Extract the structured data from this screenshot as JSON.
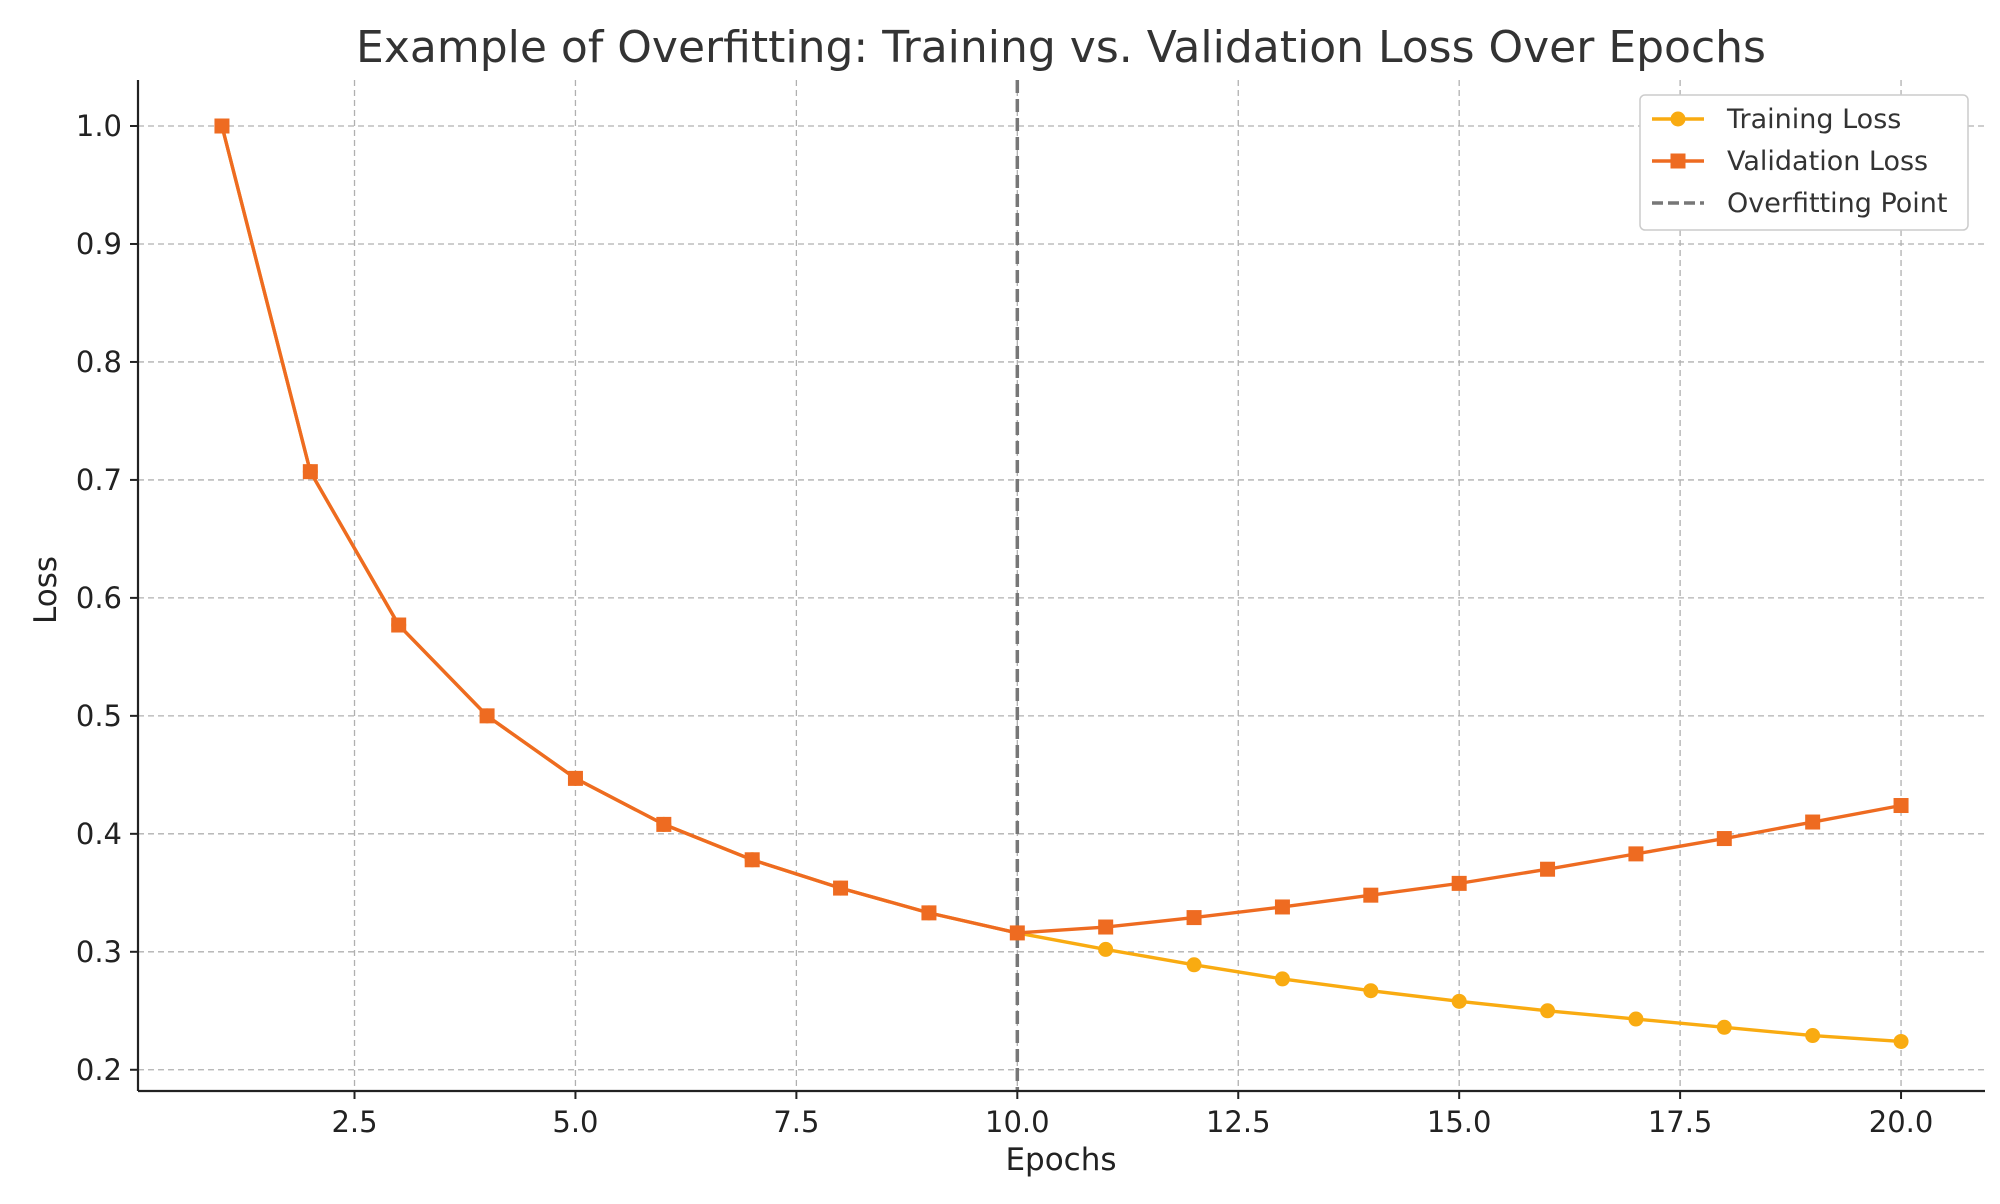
{
  "chart_data": {
    "type": "line",
    "title": "Example of Overfitting: Training vs. Validation Loss Over Epochs",
    "xlabel": "Epochs",
    "ylabel": "Loss",
    "xlim": [
      0.05,
      20.95
    ],
    "ylim": [
      0.182,
      1.039
    ],
    "xticks": [
      2.5,
      5.0,
      7.5,
      10.0,
      12.5,
      15.0,
      17.5,
      20.0
    ],
    "xtick_labels": [
      "2.5",
      "5.0",
      "7.5",
      "10.0",
      "12.5",
      "15.0",
      "17.5",
      "20.0"
    ],
    "yticks": [
      0.2,
      0.3,
      0.4,
      0.5,
      0.6,
      0.7,
      0.8,
      0.9,
      1.0
    ],
    "ytick_labels": [
      "0.2",
      "0.3",
      "0.4",
      "0.5",
      "0.6",
      "0.7",
      "0.8",
      "0.9",
      "1.0"
    ],
    "grid": true,
    "legend_position": "top-right",
    "x": [
      1,
      2,
      3,
      4,
      5,
      6,
      7,
      8,
      9,
      10,
      11,
      12,
      13,
      14,
      15,
      16,
      17,
      18,
      19,
      20
    ],
    "series": [
      {
        "name": "Training Loss",
        "color": "#f9ab11",
        "marker": "circle",
        "values": [
          1.0,
          0.707,
          0.577,
          0.5,
          0.447,
          0.408,
          0.378,
          0.354,
          0.333,
          0.316,
          0.302,
          0.289,
          0.277,
          0.267,
          0.258,
          0.25,
          0.243,
          0.236,
          0.229,
          0.224
        ]
      },
      {
        "name": "Validation Loss",
        "color": "#ee6b21",
        "marker": "square",
        "values": [
          1.0,
          0.707,
          0.577,
          0.5,
          0.447,
          0.408,
          0.378,
          0.354,
          0.333,
          0.316,
          0.321,
          0.329,
          0.338,
          0.348,
          0.358,
          0.37,
          0.383,
          0.396,
          0.41,
          0.424
        ]
      }
    ],
    "reference_lines": [
      {
        "name": "Overfitting Point",
        "orientation": "vertical",
        "x": 10,
        "color": "#777777",
        "style": "dashed"
      }
    ]
  }
}
